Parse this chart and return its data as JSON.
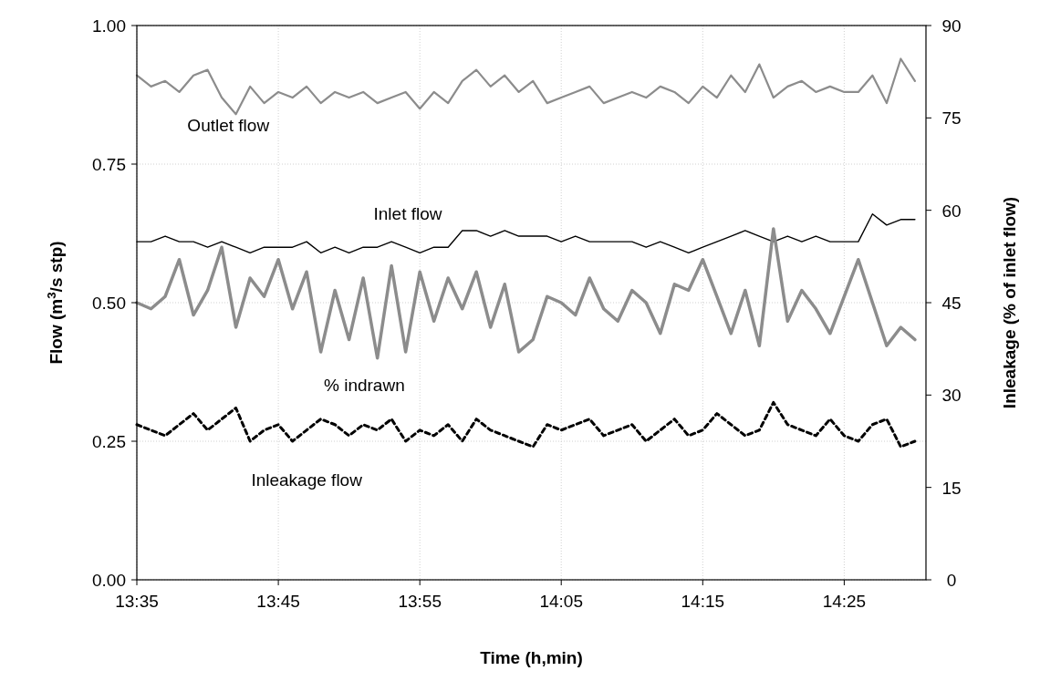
{
  "chart_data": {
    "type": "line",
    "xlabel": "Time (h,min)",
    "ylabel": "Flow (m$^{3}$/s stp)",
    "y2label": "Inleakage (% of inlet flow)",
    "x": [
      13.5833,
      13.6,
      13.6167,
      13.6333,
      13.65,
      13.6667,
      13.6833,
      13.7,
      13.7167,
      13.7333,
      13.75,
      13.7667,
      13.7833,
      13.8,
      13.8167,
      13.8333,
      13.85,
      13.8667,
      13.8833,
      13.9,
      13.9167,
      13.9333,
      13.95,
      13.9667,
      13.9833,
      14.0,
      14.0167,
      14.0333,
      14.05,
      14.0667,
      14.0833,
      14.1,
      14.1167,
      14.1333,
      14.15,
      14.1667,
      14.1833,
      14.2,
      14.2167,
      14.2333,
      14.25,
      14.2667,
      14.2833,
      14.3,
      14.3167,
      14.3333,
      14.35,
      14.3667,
      14.3833,
      14.4,
      14.4167,
      14.4333,
      14.45,
      14.4667,
      14.4833,
      14.5
    ],
    "xlim": [
      13.5833,
      14.513
    ],
    "xticks": [
      {
        "value": 13.5833,
        "label": "13:35"
      },
      {
        "value": 13.75,
        "label": "13:45"
      },
      {
        "value": 13.9167,
        "label": "13:55"
      },
      {
        "value": 14.0833,
        "label": "14:05"
      },
      {
        "value": 14.25,
        "label": "14:15"
      },
      {
        "value": 14.4167,
        "label": "14:25"
      }
    ],
    "ylim": [
      0,
      1
    ],
    "yticks": [
      {
        "value": 0,
        "label": "0.00"
      },
      {
        "value": 0.25,
        "label": "0.25"
      },
      {
        "value": 0.5,
        "label": "0.50"
      },
      {
        "value": 0.75,
        "label": "0.75"
      },
      {
        "value": 1,
        "label": "1.00"
      }
    ],
    "y2lim": [
      0,
      90
    ],
    "y2ticks": [
      0,
      15,
      30,
      45,
      60,
      75,
      90
    ],
    "grid": true,
    "series": [
      {
        "name": "Outlet flow",
        "color": "#8c8c8c",
        "values": [
          0.91,
          0.89,
          0.9,
          0.88,
          0.91,
          0.92,
          0.87,
          0.84,
          0.89,
          0.86,
          0.88,
          0.87,
          0.89,
          0.86,
          0.88,
          0.87,
          0.88,
          0.86,
          0.87,
          0.88,
          0.85,
          0.88,
          0.86,
          0.9,
          0.92,
          0.89,
          0.91,
          0.88,
          0.9,
          0.86,
          0.87,
          0.88,
          0.89,
          0.86,
          0.87,
          0.88,
          0.87,
          0.89,
          0.88,
          0.86,
          0.89,
          0.87,
          0.91,
          0.88,
          0.93,
          0.87,
          0.89,
          0.9,
          0.88,
          0.89,
          0.88,
          0.88,
          0.91,
          0.86,
          0.94,
          0.9
        ]
      },
      {
        "name": "Inlet flow",
        "color": "#000000",
        "values": [
          0.61,
          0.61,
          0.62,
          0.61,
          0.61,
          0.6,
          0.61,
          0.6,
          0.59,
          0.6,
          0.6,
          0.6,
          0.61,
          0.59,
          0.6,
          0.59,
          0.6,
          0.6,
          0.61,
          0.6,
          0.59,
          0.6,
          0.6,
          0.63,
          0.63,
          0.62,
          0.63,
          0.62,
          0.62,
          0.62,
          0.61,
          0.62,
          0.61,
          0.61,
          0.61,
          0.61,
          0.6,
          0.61,
          0.6,
          0.59,
          0.6,
          0.61,
          0.62,
          0.63,
          0.62,
          0.61,
          0.62,
          0.61,
          0.62,
          0.61,
          0.61,
          0.61,
          0.66,
          0.64,
          0.65,
          0.65
        ]
      },
      {
        "name": "% indrawn",
        "color": "#8c8c8c",
        "axis": "y2",
        "values": [
          45,
          44,
          46,
          52,
          43,
          47,
          54,
          41,
          49,
          46,
          52,
          44,
          50,
          37,
          47,
          39,
          49,
          36,
          51,
          37,
          50,
          42,
          49,
          44,
          50,
          41,
          48,
          37,
          39,
          46,
          45,
          43,
          49,
          44,
          42,
          47,
          45,
          40,
          48,
          47,
          52,
          46,
          40,
          47,
          38,
          57,
          42,
          47,
          44,
          40,
          46,
          52,
          45,
          38,
          41,
          39
        ]
      },
      {
        "name": "Inleakage flow",
        "color": "#000000",
        "line_style": "dashed",
        "values": [
          0.28,
          0.27,
          0.26,
          0.28,
          0.3,
          0.27,
          0.29,
          0.31,
          0.25,
          0.27,
          0.28,
          0.25,
          0.27,
          0.29,
          0.28,
          0.26,
          0.28,
          0.27,
          0.29,
          0.25,
          0.27,
          0.26,
          0.28,
          0.25,
          0.29,
          0.27,
          0.26,
          0.25,
          0.24,
          0.28,
          0.27,
          0.28,
          0.29,
          0.26,
          0.27,
          0.28,
          0.25,
          0.27,
          0.29,
          0.26,
          0.27,
          0.3,
          0.28,
          0.26,
          0.27,
          0.32,
          0.28,
          0.27,
          0.26,
          0.29,
          0.26,
          0.25,
          0.28,
          0.29,
          0.24,
          0.25
        ]
      }
    ]
  }
}
